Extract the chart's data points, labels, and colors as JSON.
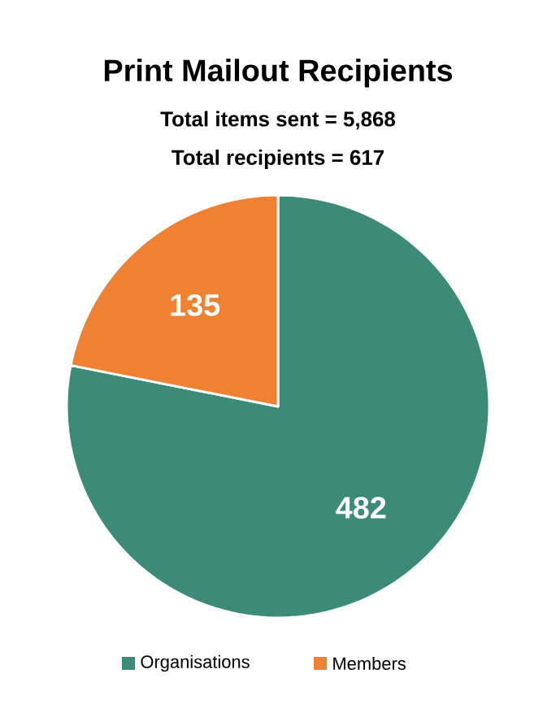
{
  "chart_data": {
    "type": "pie",
    "title": "Print Mailout Recipients",
    "subtitle": "Total items sent = 5,868",
    "annotations": [
      "Total recipients = 617"
    ],
    "categories": [
      "Organisations",
      "Members"
    ],
    "values": [
      482,
      135
    ],
    "colors": [
      "#3b8b78",
      "#ef8232"
    ],
    "data_labels": true,
    "legend": "bottom"
  }
}
